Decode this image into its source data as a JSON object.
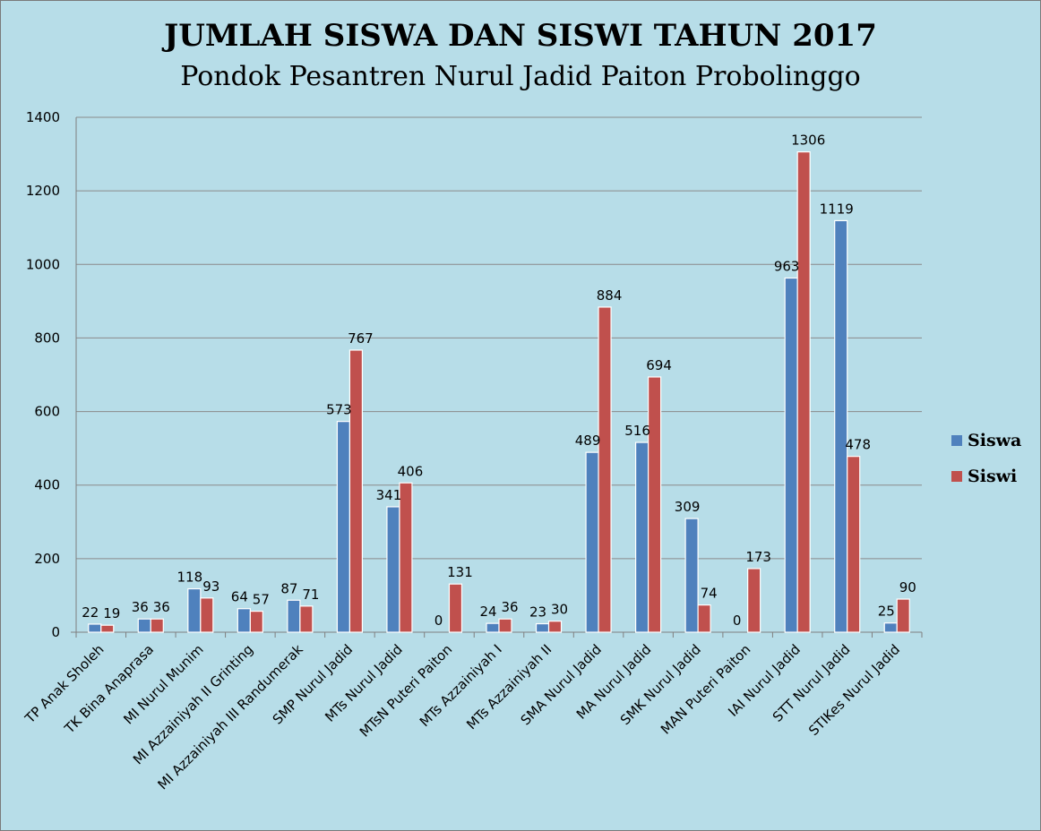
{
  "chart_data": {
    "type": "bar",
    "title": "JUMLAH SISWA DAN SISWI TAHUN 2017",
    "subtitle": "Pondok Pesantren Nurul Jadid Paiton Probolinggo",
    "categories": [
      "TP Anak Sholeh",
      "TK Bina Anaprasa",
      "MI Nurul Munim",
      "MI Azzainiyah II Grinting",
      "MI Azzainiyah III Randumerak",
      "SMP Nurul Jadid",
      "MTs Nurul Jadid",
      "MTsN Puteri Paiton",
      "MTs Azzainiyah I",
      "MTs Azzainiyah II",
      "SMA Nurul Jadid",
      "MA Nurul Jadid",
      "SMK Nurul Jadid",
      "MAN Puteri Paiton",
      "IAI Nurul Jadid",
      "STT Nurul Jadid",
      "STIKes Nurul Jadid"
    ],
    "series": [
      {
        "name": "Siswa",
        "color": "#4f81bd",
        "values": [
          22,
          36,
          118,
          64,
          87,
          573,
          341,
          0,
          24,
          23,
          489,
          516,
          309,
          0,
          963,
          1119,
          25
        ]
      },
      {
        "name": "Siswi",
        "color": "#c0504d",
        "values": [
          19,
          36,
          93,
          57,
          71,
          767,
          406,
          131,
          36,
          30,
          884,
          694,
          74,
          173,
          1306,
          478,
          90
        ]
      }
    ],
    "y_ticks": [
      "0",
      "200",
      "400",
      "600",
      "800",
      "1000",
      "1200",
      "1400"
    ],
    "ylim": [
      0,
      1400
    ],
    "grid": true,
    "legend_position": "right"
  }
}
